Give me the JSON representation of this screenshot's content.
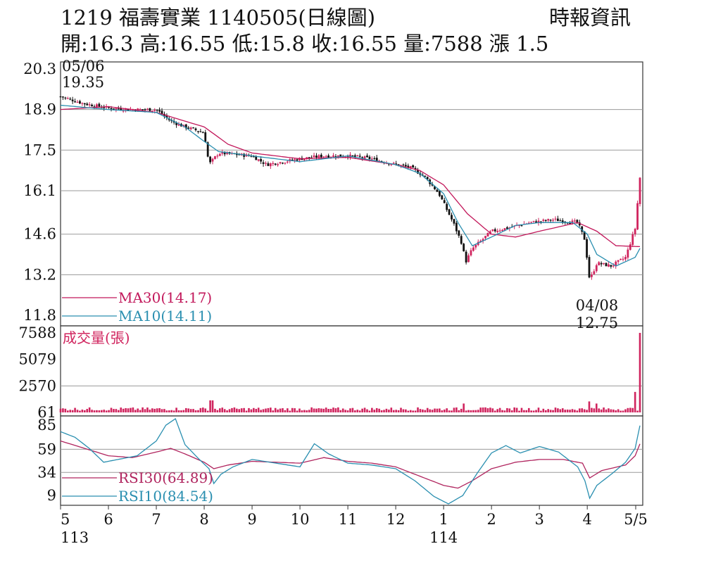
{
  "header": {
    "title": "1219  福壽實業 1140505(日線圖)",
    "source": "時報資訊",
    "quote": "開:16.3 高:16.55 低:15.8 收:16.55 量:7588 漲 1.5"
  },
  "colors": {
    "up": "#d0245e",
    "down": "#111111",
    "ma30": "#c2185b",
    "ma10": "#2a8fb0",
    "rsi30": "#b0245e",
    "rsi10": "#2a8fb0",
    "volume": "#d0245e",
    "grid": "#9a9a9a"
  },
  "chart_data": [
    {
      "type": "candlestick",
      "panel": "price",
      "y_ticks": [
        "20.3",
        "18.9",
        "17.5",
        "16.1",
        "14.6",
        "13.2",
        "11.8"
      ],
      "ylim": [
        11.8,
        20.3
      ],
      "x_ticks": [
        "5",
        "6",
        "7",
        "8",
        "9",
        "10",
        "11",
        "12",
        "1",
        "2",
        "3",
        "4",
        "5/5"
      ],
      "x_year_labels": [
        "113",
        "114"
      ],
      "annotations": [
        {
          "date": "05/06",
          "value": "19.35"
        },
        {
          "date": "04/08",
          "value": "12.75"
        }
      ],
      "legend": [
        {
          "label": "MA30(14.17)",
          "key": "ma30"
        },
        {
          "label": "MA10(14.11)",
          "key": "ma10"
        }
      ],
      "price_path": [
        [
          0,
          19.35
        ],
        [
          0.5,
          19.1
        ],
        [
          1,
          18.95
        ],
        [
          1.5,
          18.9
        ],
        [
          2,
          18.9
        ],
        [
          2.3,
          18.5
        ],
        [
          2.6,
          18.3
        ],
        [
          3,
          18.1
        ],
        [
          3.1,
          17.0
        ],
        [
          3.3,
          17.4
        ],
        [
          4,
          17.3
        ],
        [
          4.3,
          17.0
        ],
        [
          5,
          17.2
        ],
        [
          5.5,
          17.3
        ],
        [
          6,
          17.3
        ],
        [
          6.5,
          17.2
        ],
        [
          7,
          17.0
        ],
        [
          7.3,
          16.9
        ],
        [
          7.6,
          16.6
        ],
        [
          7.9,
          16.0
        ],
        [
          8.2,
          15.0
        ],
        [
          8.4,
          14.2
        ],
        [
          8.45,
          13.6
        ],
        [
          8.6,
          14.1
        ],
        [
          9,
          14.7
        ],
        [
          9.3,
          14.8
        ],
        [
          9.8,
          15.0
        ],
        [
          10.3,
          15.1
        ],
        [
          10.8,
          15.0
        ],
        [
          10.95,
          14.4
        ],
        [
          11.05,
          13.0
        ],
        [
          11.2,
          13.6
        ],
        [
          11.5,
          13.5
        ],
        [
          11.8,
          13.8
        ],
        [
          12.0,
          14.8
        ],
        [
          12.1,
          16.55
        ]
      ],
      "ma10": [
        [
          0,
          19.05
        ],
        [
          1,
          18.9
        ],
        [
          2,
          18.8
        ],
        [
          2.6,
          18.3
        ],
        [
          3,
          17.8
        ],
        [
          3.3,
          17.45
        ],
        [
          4,
          17.3
        ],
        [
          5,
          17.1
        ],
        [
          6,
          17.3
        ],
        [
          7,
          17.0
        ],
        [
          7.5,
          16.7
        ],
        [
          8,
          16.0
        ],
        [
          8.3,
          15.0
        ],
        [
          8.6,
          14.2
        ],
        [
          9,
          14.5
        ],
        [
          9.5,
          14.9
        ],
        [
          10,
          15.0
        ],
        [
          10.7,
          15.0
        ],
        [
          11,
          14.6
        ],
        [
          11.2,
          13.9
        ],
        [
          11.6,
          13.5
        ],
        [
          12.0,
          13.8
        ],
        [
          12.1,
          14.11
        ]
      ],
      "ma30": [
        [
          0,
          18.9
        ],
        [
          1,
          19.0
        ],
        [
          2,
          18.8
        ],
        [
          3,
          18.3
        ],
        [
          3.5,
          17.7
        ],
        [
          4,
          17.4
        ],
        [
          5,
          17.2
        ],
        [
          6,
          17.25
        ],
        [
          7,
          17.0
        ],
        [
          7.5,
          16.8
        ],
        [
          8,
          16.3
        ],
        [
          8.5,
          15.3
        ],
        [
          9,
          14.6
        ],
        [
          9.5,
          14.5
        ],
        [
          10,
          14.7
        ],
        [
          10.8,
          15.0
        ],
        [
          11.2,
          14.7
        ],
        [
          11.6,
          14.2
        ],
        [
          12.1,
          14.17
        ]
      ]
    },
    {
      "type": "bar",
      "panel": "volume",
      "title": "成交量(張)",
      "y_ticks": [
        "7588",
        "5079",
        "2570",
        "61"
      ],
      "ylim": [
        61,
        7588
      ],
      "spikes": [
        {
          "x": 3.15,
          "value": 1200
        },
        {
          "x": 7.65,
          "value": 480
        },
        {
          "x": 8.4,
          "value": 900
        },
        {
          "x": 11.05,
          "value": 1100
        },
        {
          "x": 11.2,
          "value": 900
        },
        {
          "x": 12.0,
          "value": 2000
        },
        {
          "x": 12.1,
          "value": 7588
        }
      ],
      "base_value": 220
    },
    {
      "type": "line",
      "panel": "rsi",
      "y_ticks": [
        "85",
        "59",
        "34",
        "9"
      ],
      "ylim": [
        0,
        92
      ],
      "legend": [
        {
          "label": "RSI30(64.89)",
          "key": "rsi30"
        },
        {
          "label": "RSI10(84.54)",
          "key": "rsi10"
        }
      ],
      "rsi10": [
        [
          0,
          78
        ],
        [
          0.3,
          72
        ],
        [
          0.6,
          60
        ],
        [
          0.9,
          45
        ],
        [
          1.2,
          48
        ],
        [
          1.6,
          52
        ],
        [
          2.0,
          68
        ],
        [
          2.2,
          85
        ],
        [
          2.4,
          92
        ],
        [
          2.6,
          64
        ],
        [
          2.9,
          48
        ],
        [
          3.1,
          38
        ],
        [
          3.2,
          22
        ],
        [
          3.35,
          32
        ],
        [
          3.6,
          40
        ],
        [
          4.0,
          48
        ],
        [
          4.5,
          44
        ],
        [
          5.0,
          40
        ],
        [
          5.3,
          65
        ],
        [
          5.6,
          54
        ],
        [
          6.0,
          44
        ],
        [
          6.5,
          42
        ],
        [
          7.0,
          38
        ],
        [
          7.4,
          25
        ],
        [
          7.8,
          8
        ],
        [
          8.1,
          0
        ],
        [
          8.4,
          9
        ],
        [
          8.7,
          33
        ],
        [
          9.0,
          55
        ],
        [
          9.3,
          63
        ],
        [
          9.6,
          55
        ],
        [
          10.0,
          62
        ],
        [
          10.4,
          56
        ],
        [
          10.8,
          40
        ],
        [
          10.95,
          25
        ],
        [
          11.05,
          6
        ],
        [
          11.2,
          20
        ],
        [
          11.5,
          32
        ],
        [
          11.8,
          45
        ],
        [
          12.0,
          60
        ],
        [
          12.1,
          84.54
        ]
      ],
      "rsi30": [
        [
          0,
          68
        ],
        [
          0.5,
          60
        ],
        [
          1.0,
          52
        ],
        [
          1.5,
          50
        ],
        [
          2.0,
          56
        ],
        [
          2.3,
          60
        ],
        [
          2.6,
          54
        ],
        [
          3.0,
          45
        ],
        [
          3.2,
          38
        ],
        [
          3.5,
          42
        ],
        [
          4.0,
          46
        ],
        [
          5.0,
          44
        ],
        [
          5.5,
          50
        ],
        [
          6.0,
          46
        ],
        [
          6.5,
          44
        ],
        [
          7.0,
          40
        ],
        [
          7.5,
          30
        ],
        [
          8.0,
          20
        ],
        [
          8.3,
          17
        ],
        [
          8.6,
          25
        ],
        [
          9.0,
          38
        ],
        [
          9.5,
          45
        ],
        [
          10.0,
          48
        ],
        [
          10.5,
          48
        ],
        [
          10.9,
          44
        ],
        [
          11.05,
          28
        ],
        [
          11.3,
          36
        ],
        [
          11.8,
          42
        ],
        [
          12.0,
          52
        ],
        [
          12.1,
          64.89
        ]
      ]
    }
  ]
}
